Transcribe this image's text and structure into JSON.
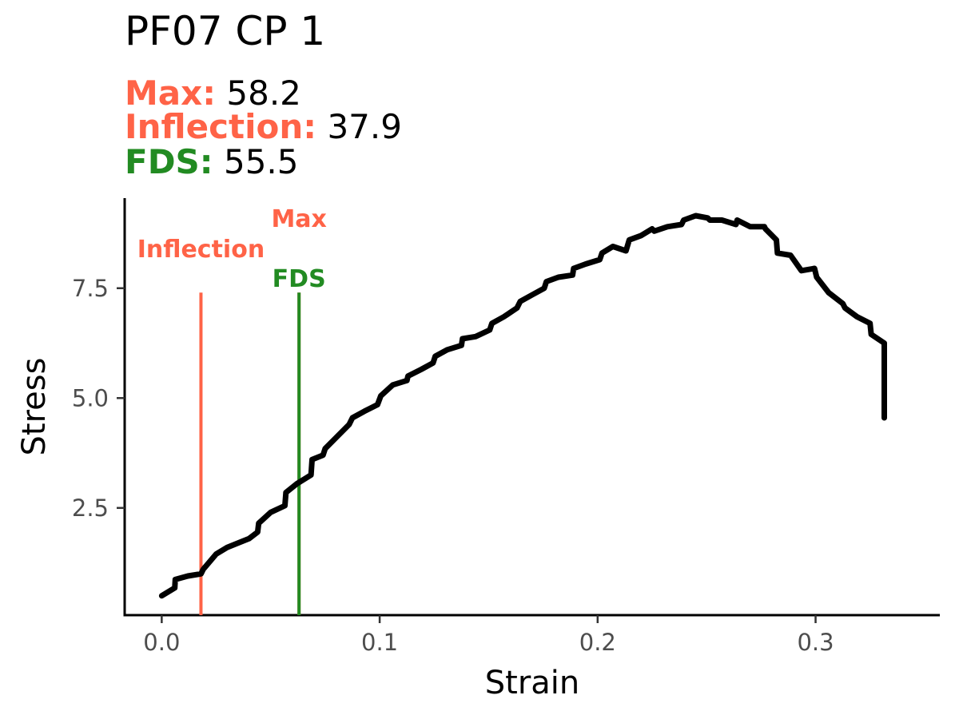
{
  "title": "PF07 CP 1",
  "stats": {
    "max": {
      "label": "Max:",
      "value": "58.2",
      "color": "#FF6347"
    },
    "inflection": {
      "label": "Inflection:",
      "value": "37.9",
      "color": "#FF6347"
    },
    "fds": {
      "label": "FDS:",
      "value": "55.5",
      "color": "#228B22"
    }
  },
  "chart_data": {
    "type": "line",
    "xlabel": "Strain",
    "ylabel": "Stress",
    "xlim": [
      -0.017,
      0.357
    ],
    "ylim": [
      0.06,
      9.55
    ],
    "x_ticks": [
      0.0,
      0.1,
      0.2,
      0.3
    ],
    "x_tick_labels": [
      "0.0",
      "0.1",
      "0.2",
      "0.3"
    ],
    "y_ticks": [
      2.5,
      5.0,
      7.5
    ],
    "y_tick_labels": [
      "2.5",
      "5.0",
      "7.5"
    ],
    "grid": false,
    "line_color": "#000000",
    "series": [
      {
        "x": [
          0.0,
          0.006,
          0.0062,
          0.012,
          0.018,
          0.019,
          0.025,
          0.03,
          0.035,
          0.04,
          0.044,
          0.0445,
          0.05,
          0.0565,
          0.057,
          0.062,
          0.0685,
          0.069,
          0.074,
          0.075,
          0.08,
          0.086,
          0.0875,
          0.093,
          0.099,
          0.1005,
          0.106,
          0.1125,
          0.113,
          0.119,
          0.1245,
          0.1255,
          0.131,
          0.1375,
          0.138,
          0.144,
          0.1505,
          0.1515,
          0.157,
          0.163,
          0.1645,
          0.17,
          0.1755,
          0.1765,
          0.182,
          0.1885,
          0.189,
          0.1945,
          0.201,
          0.202,
          0.207,
          0.213,
          0.2145,
          0.22,
          0.225,
          0.226,
          0.232,
          0.2385,
          0.2395,
          0.245,
          0.2505,
          0.2515,
          0.257,
          0.2635,
          0.264,
          0.27,
          0.2765,
          0.277,
          0.282,
          0.2825,
          0.2885,
          0.2935,
          0.2995,
          0.3005,
          0.306,
          0.3125,
          0.3135,
          0.319,
          0.325,
          0.3255,
          0.3315,
          0.3315
        ],
        "y": [
          0.5,
          0.68,
          0.87,
          0.95,
          1.0,
          1.1,
          1.45,
          1.6,
          1.7,
          1.8,
          1.95,
          2.15,
          2.4,
          2.55,
          2.85,
          3.05,
          3.25,
          3.6,
          3.7,
          3.85,
          4.1,
          4.4,
          4.55,
          4.7,
          4.85,
          5.05,
          5.3,
          5.4,
          5.5,
          5.65,
          5.8,
          5.95,
          6.1,
          6.2,
          6.35,
          6.4,
          6.55,
          6.7,
          6.85,
          7.05,
          7.2,
          7.35,
          7.5,
          7.65,
          7.75,
          7.8,
          7.95,
          8.05,
          8.15,
          8.3,
          8.45,
          8.35,
          8.6,
          8.7,
          8.85,
          8.8,
          8.9,
          8.95,
          9.05,
          9.15,
          9.1,
          9.05,
          9.05,
          8.95,
          9.05,
          8.9,
          8.9,
          8.85,
          8.6,
          8.3,
          8.25,
          7.9,
          7.95,
          7.75,
          7.4,
          7.15,
          7.05,
          6.85,
          6.7,
          6.45,
          6.25,
          4.55
        ]
      }
    ],
    "markers": [
      {
        "name": "Inflection",
        "x": 0.018,
        "ymax": 7.4,
        "color": "#FF6347"
      },
      {
        "name": "Max",
        "x": 0.063,
        "ymax": 7.4,
        "color": "#FF6347"
      },
      {
        "name": "FDS",
        "x": 0.063,
        "ymax": 7.4,
        "color": "#228B22"
      }
    ]
  }
}
